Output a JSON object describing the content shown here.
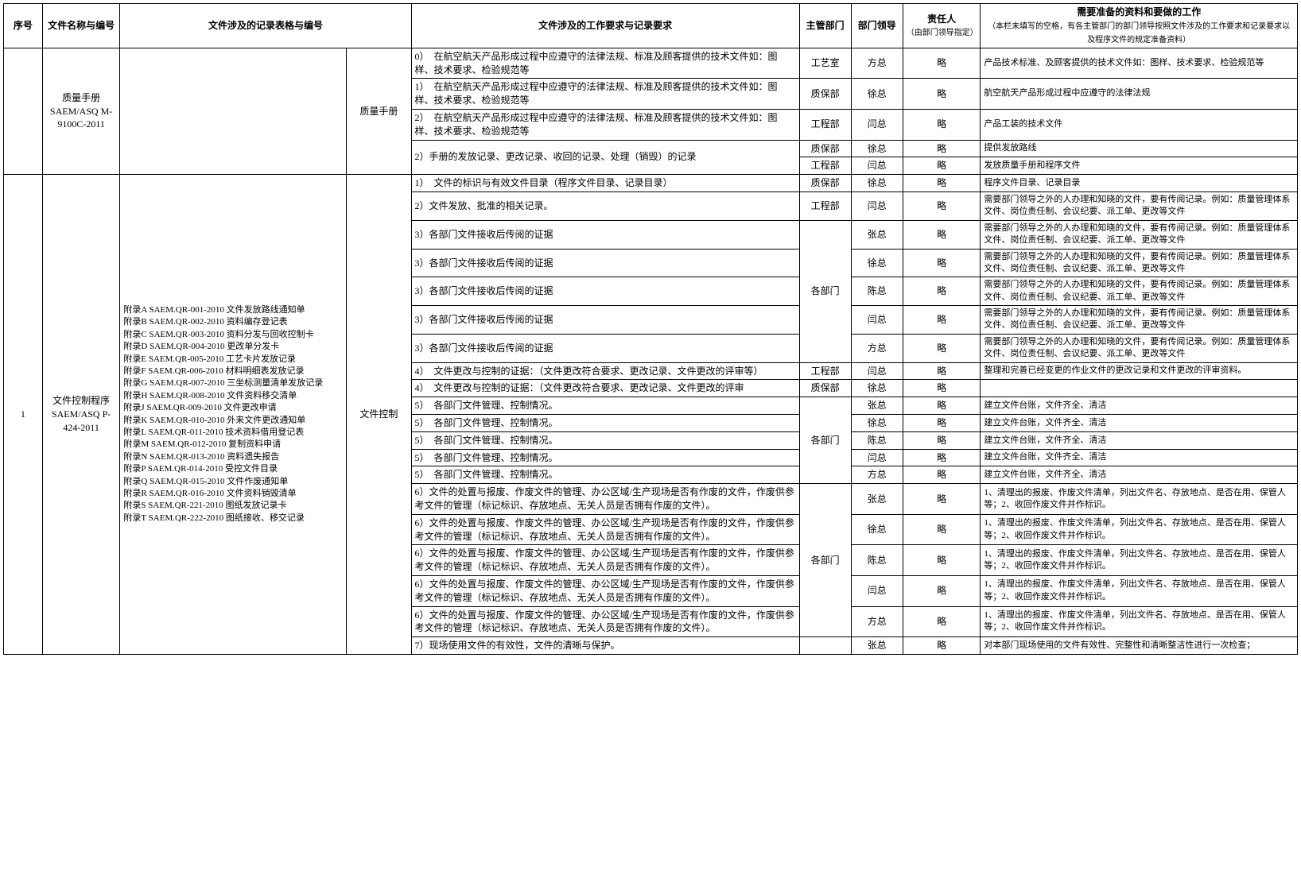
{
  "headers": {
    "seq": "序号",
    "docName": "文件名称与编号",
    "recordForm": "文件涉及的记录表格与编号",
    "workReq": "文件涉及的工作要求与记录要求",
    "dept": "主管部门",
    "deptLead": "部门领导",
    "responsible": "责任人",
    "responsibleNote": "（由部门领导指定）",
    "prep": "需要准备的资料和要做的工作",
    "prepNote": "（本栏未填写的空格，有各主管部门的部门领导按照文件涉及的工作要求和记录要求以及程序文件的规定准备资料）"
  },
  "section1": {
    "docName": "质量手册SAEM/ASQ M-9100C-2011",
    "recordForm": "质量手册",
    "rows": [
      {
        "req": "0）　在航空航天产品形成过程中应遵守的法律法规、标准及顾客提供的技术文件如：图样、技术要求、检验规范等",
        "dept": "工艺室",
        "lead": "方总",
        "resp": "略",
        "prep": "产品技术标准、及顾客提供的技术文件如：图样、技术要求、检验规范等"
      },
      {
        "req": "1）　在航空航天产品形成过程中应遵守的法律法规、标准及顾客提供的技术文件如：图样、技术要求、检验规范等",
        "dept": "质保部",
        "lead": "徐总",
        "resp": "略",
        "prep": "航空航天产品形成过程中应遵守的法律法规"
      },
      {
        "req": "2）　在航空航天产品形成过程中应遵守的法律法规、标准及顾客提供的技术文件如：图样、技术要求、检验规范等",
        "dept": "工程部",
        "lead": "闫总",
        "resp": "略",
        "prep": "产品工装的技术文件"
      },
      {
        "req": "2）手册的发放记录、更改记录、收回的记录、处理（销毁）的记录",
        "dept": "质保部",
        "lead": "徐总",
        "resp": "略",
        "prep": "提供发放路线"
      },
      {
        "req": "",
        "dept": "工程部",
        "lead": "闫总",
        "resp": "略",
        "prep": "发放质量手册和程序文件"
      }
    ]
  },
  "section2": {
    "seq": "1",
    "docName": "文件控制程序 SAEM/ASQ P-424-2011",
    "recordForm": "文件控制",
    "records": [
      "附录A SAEM.QR-001-2010 文件发放路线通知单",
      "附录B SAEM.QR-002-2010 资料编存登记表",
      "附录C SAEM.QR-003-2010 资料分发与回收控制卡",
      "附录D SAEM.QR-004-2010 更改单分发卡",
      "附录E SAEM.QR-005-2010 工艺卡片发放记录",
      "附录F SAEM.QR-006-2010 材料明细表发放记录",
      "附录G SAEM.QR-007-2010 三坐标测量清单发放记录",
      "附录H SAEM.QR-008-2010 文件资料移交清单",
      "附录J SAEM.QR-009-2010 文件更改申请",
      "附录K SAEM.QR-010-2010 外来文件更改通知单",
      "附录L SAEM.QR-011-2010 技术资料借用登记表",
      "附录M SAEM.QR-012-2010 复制资料申请",
      "附录N SAEM.QR-013-2010 资料遗失报告",
      "附录P SAEM.QR-014-2010 受控文件目录",
      "附录Q SAEM.QR-015-2010 文件作废通知单",
      "附录R SAEM.QR-016-2010 文件资料销毁清单",
      "附录S SAEM.QR-221-2010 图纸发放记录卡",
      "附录T SAEM.QR-222-2010 图纸接收、移交记录"
    ],
    "rows": [
      {
        "req": "1）　文件的标识与有效文件目录（程序文件目录、记录目录）",
        "dept": "质保部",
        "lead": "徐总",
        "resp": "略",
        "prep": "程序文件目录、记录目录",
        "deptSpan": 1
      },
      {
        "req": "2）文件发放、批准的相关记录。",
        "dept": "工程部",
        "lead": "闫总",
        "resp": "略",
        "prep": "需要部门领导之外的人办理和知晓的文件，要有传阅记录。例如：质量管理体系文件、岗位责任制、会议纪要、派工单、更改等文件",
        "deptSpan": 1
      },
      {
        "req": "3）各部门文件接收后传阅的证据",
        "dept": "各部门",
        "lead": "张总",
        "resp": "略",
        "prep": "需要部门领导之外的人办理和知晓的文件，要有传阅记录。例如：质量管理体系文件、岗位责任制、会议纪要、派工单、更改等文件",
        "deptSpan": 5
      },
      {
        "req": "3）各部门文件接收后传阅的证据",
        "dept": "",
        "lead": "徐总",
        "resp": "略",
        "prep": "需要部门领导之外的人办理和知晓的文件，要有传阅记录。例如：质量管理体系文件、岗位责任制、会议纪要、派工单、更改等文件"
      },
      {
        "req": "3）各部门文件接收后传阅的证据",
        "dept": "",
        "lead": "陈总",
        "resp": "略",
        "prep": "需要部门领导之外的人办理和知晓的文件，要有传阅记录。例如：质量管理体系文件、岗位责任制、会议纪要、派工单、更改等文件"
      },
      {
        "req": "3）各部门文件接收后传阅的证据",
        "dept": "",
        "lead": "闫总",
        "resp": "略",
        "prep": "需要部门领导之外的人办理和知晓的文件，要有传阅记录。例如：质量管理体系文件、岗位责任制、会议纪要、派工单、更改等文件"
      },
      {
        "req": "3）各部门文件接收后传阅的证据",
        "dept": "",
        "lead": "方总",
        "resp": "略",
        "prep": "需要部门领导之外的人办理和知晓的文件，要有传阅记录。例如：质量管理体系文件、岗位责任制、会议纪要、派工单、更改等文件"
      },
      {
        "req": "4）　文件更改与控制的证据：（文件更改符合要求、更改记录、文件更改的评审等）",
        "dept": "工程部",
        "lead": "闫总",
        "resp": "略",
        "prep": "整理和完善已经变更的作业文件的更改记录和文件更改的评审资料。",
        "deptSpan": 1
      },
      {
        "req": "4）　文件更改与控制的证据：（文件更改符合要求、更改记录、文件更改的评审",
        "dept": "质保部",
        "lead": "徐总",
        "resp": "略",
        "prep": "",
        "deptSpan": 1
      },
      {
        "req": "5）　各部门文件管理、控制情况。",
        "dept": "各部门",
        "lead": "张总",
        "resp": "略",
        "prep": "建立文件台账，文件齐全、清洁",
        "deptSpan": 5
      },
      {
        "req": "5）　各部门文件管理、控制情况。",
        "dept": "",
        "lead": "徐总",
        "resp": "略",
        "prep": "建立文件台账，文件齐全、清洁"
      },
      {
        "req": "5）　各部门文件管理、控制情况。",
        "dept": "",
        "lead": "陈总",
        "resp": "略",
        "prep": "建立文件台账，文件齐全、清洁"
      },
      {
        "req": "5）　各部门文件管理、控制情况。",
        "dept": "",
        "lead": "闫总",
        "resp": "略",
        "prep": "建立文件台账，文件齐全、清洁"
      },
      {
        "req": "5）　各部门文件管理、控制情况。",
        "dept": "",
        "lead": "方总",
        "resp": "略",
        "prep": "建立文件台账，文件齐全、清洁"
      },
      {
        "req": "6）文件的处置与报废、作废文件的管理、办公区域/生产现场是否有作废的文件，作废供参考文件的管理（标记标识、存放地点、无关人员是否拥有作废的文件）。",
        "dept": "各部门",
        "lead": "张总",
        "resp": "略",
        "prep": "1、清理出的报废、作废文件清单，列出文件名、存放地点、是否在用、保管人等；2、收回作废文件并作标识。",
        "deptSpan": 5
      },
      {
        "req": "6）文件的处置与报废、作废文件的管理、办公区域/生产现场是否有作废的文件，作废供参考文件的管理（标记标识、存放地点、无关人员是否拥有作废的文件）。",
        "dept": "",
        "lead": "徐总",
        "resp": "略",
        "prep": "1、清理出的报废、作废文件清单，列出文件名、存放地点、是否在用、保管人等；2、收回作废文件并作标识。"
      },
      {
        "req": "6）文件的处置与报废、作废文件的管理、办公区域/生产现场是否有作废的文件，作废供参考文件的管理（标记标识、存放地点、无关人员是否拥有作废的文件）。",
        "dept": "",
        "lead": "陈总",
        "resp": "略",
        "prep": "1、清理出的报废、作废文件清单，列出文件名、存放地点、是否在用、保管人等；2、收回作废文件并作标识。"
      },
      {
        "req": "6）文件的处置与报废、作废文件的管理、办公区域/生产现场是否有作废的文件，作废供参考文件的管理（标记标识、存放地点、无关人员是否拥有作废的文件）。",
        "dept": "",
        "lead": "闫总",
        "resp": "略",
        "prep": "1、清理出的报废、作废文件清单，列出文件名、存放地点、是否在用、保管人等；2、收回作废文件并作标识。"
      },
      {
        "req": "6）文件的处置与报废、作废文件的管理、办公区域/生产现场是否有作废的文件，作废供参考文件的管理（标记标识、存放地点、无关人员是否拥有作废的文件）。",
        "dept": "",
        "lead": "方总",
        "resp": "略",
        "prep": "1、清理出的报废、作废文件清单，列出文件名、存放地点、是否在用、保管人等；2、收回作废文件并作标识。"
      },
      {
        "req": "7）现场使用文件的有效性，文件的清晰与保护。",
        "dept": "",
        "lead": "张总",
        "resp": "略",
        "prep": "对本部门现场使用的文件有效性、完整性和清晰整洁性进行一次检查；",
        "deptSpan": 1
      }
    ]
  }
}
